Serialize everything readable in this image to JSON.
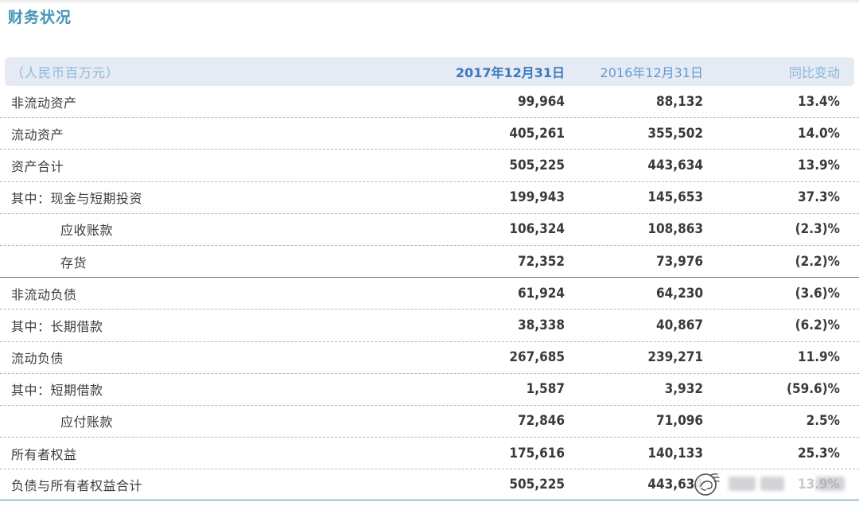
{
  "page": {
    "title": "财务状况"
  },
  "table": {
    "unit_label": "（人民币百万元）",
    "columns": [
      "2017年12月31日",
      "2016年12月31日",
      "同比变动"
    ],
    "rows": [
      {
        "label": "非流动资产",
        "indent": false,
        "v2017": "99,964",
        "v2016": "88,132",
        "change": "13.4%",
        "separator": "dotted"
      },
      {
        "label": "流动资产",
        "indent": false,
        "v2017": "405,261",
        "v2016": "355,502",
        "change": "14.0%",
        "separator": "dotted"
      },
      {
        "label": "资产合计",
        "indent": false,
        "v2017": "505,225",
        "v2016": "443,634",
        "change": "13.9%",
        "separator": "dotted"
      },
      {
        "label": "其中：现金与短期投资",
        "indent": false,
        "v2017": "199,943",
        "v2016": "145,653",
        "change": "37.3%",
        "separator": "dotted"
      },
      {
        "label": "应收账款",
        "indent": true,
        "v2017": "106,324",
        "v2016": "108,863",
        "change": "(2.3)%",
        "separator": "dotted"
      },
      {
        "label": "存货",
        "indent": true,
        "v2017": "72,352",
        "v2016": "73,976",
        "change": "(2.2)%",
        "separator": "solid"
      },
      {
        "label": "非流动负债",
        "indent": false,
        "v2017": "61,924",
        "v2016": "64,230",
        "change": "(3.6)%",
        "separator": "dotted"
      },
      {
        "label": "其中：长期借款",
        "indent": false,
        "v2017": "38,338",
        "v2016": "40,867",
        "change": "(6.2)%",
        "separator": "dotted"
      },
      {
        "label": "流动负债",
        "indent": false,
        "v2017": "267,685",
        "v2016": "239,271",
        "change": "11.9%",
        "separator": "dotted"
      },
      {
        "label": "其中：短期借款",
        "indent": false,
        "v2017": "1,587",
        "v2016": "3,932",
        "change": "(59.6)%",
        "separator": "dotted"
      },
      {
        "label": "应付账款",
        "indent": true,
        "v2017": "72,846",
        "v2016": "71,096",
        "change": "2.5%",
        "separator": "dotted"
      },
      {
        "label": "所有者权益",
        "indent": false,
        "v2017": "175,616",
        "v2016": "140,133",
        "change": "25.3%",
        "separator": "dotted"
      },
      {
        "label": "负债与所有者权益合计",
        "indent": false,
        "v2017": "505,225",
        "v2016": "443,634",
        "change": "13.9%",
        "separator": "accent"
      }
    ]
  },
  "watermark": {
    "icon": "swirl-logo-icon"
  },
  "colors": {
    "title": "#4295b4",
    "header_bg": "#e5eaf4",
    "unit_label": "#8db9d8",
    "col_2017": "#3a7ac0",
    "col_2016": "#5f9cd2",
    "col_change": "#87b7d9",
    "body_text": "#3a3a3a",
    "dotted_line": "#b7b7b7",
    "solid_line": "#707070",
    "bottom_rule": "#4e86a8"
  }
}
